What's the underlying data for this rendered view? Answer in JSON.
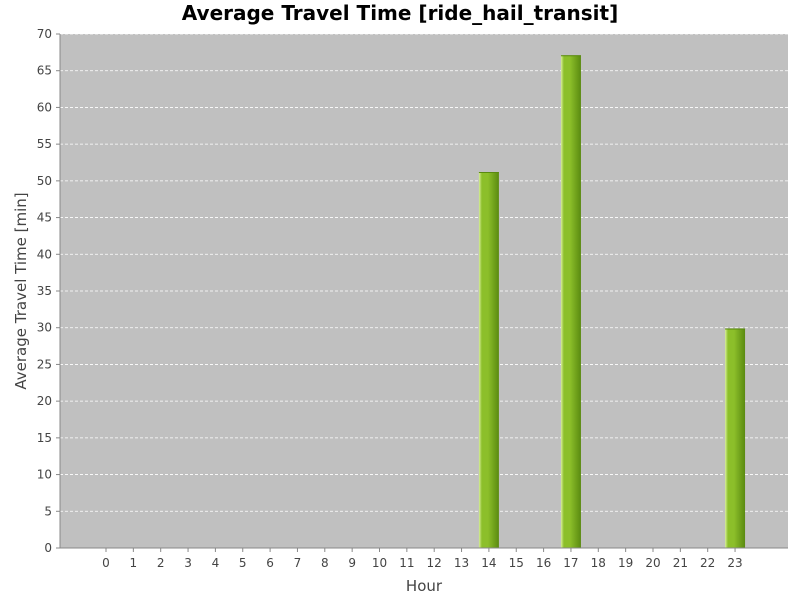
{
  "chart_data": {
    "type": "bar",
    "title": "Average Travel Time [ride_hail_transit]",
    "xlabel": "Hour",
    "ylabel": "Average Travel Time [min]",
    "categories": [
      "0",
      "1",
      "2",
      "3",
      "4",
      "5",
      "6",
      "7",
      "8",
      "9",
      "10",
      "11",
      "12",
      "13",
      "14",
      "15",
      "16",
      "17",
      "18",
      "19",
      "20",
      "21",
      "22",
      "23"
    ],
    "values": [
      0,
      0,
      0,
      0,
      0,
      0,
      0,
      0,
      0,
      0,
      0,
      0,
      0,
      0,
      51.2,
      0,
      0,
      67.1,
      0,
      0,
      0,
      0,
      0,
      29.9
    ],
    "ylim": [
      0,
      70
    ],
    "yticks": [
      0,
      5,
      10,
      15,
      20,
      25,
      30,
      35,
      40,
      45,
      50,
      55,
      60,
      65,
      70
    ],
    "grid": true,
    "legend": "none",
    "colors": {
      "plot_background": "#c0c0c0",
      "bar": "#8cbf2a",
      "bar_highlight": "#d8ef9a",
      "bar_dark": "#5a8a10",
      "gridline": "#ffffff",
      "axis": "#888888"
    }
  }
}
